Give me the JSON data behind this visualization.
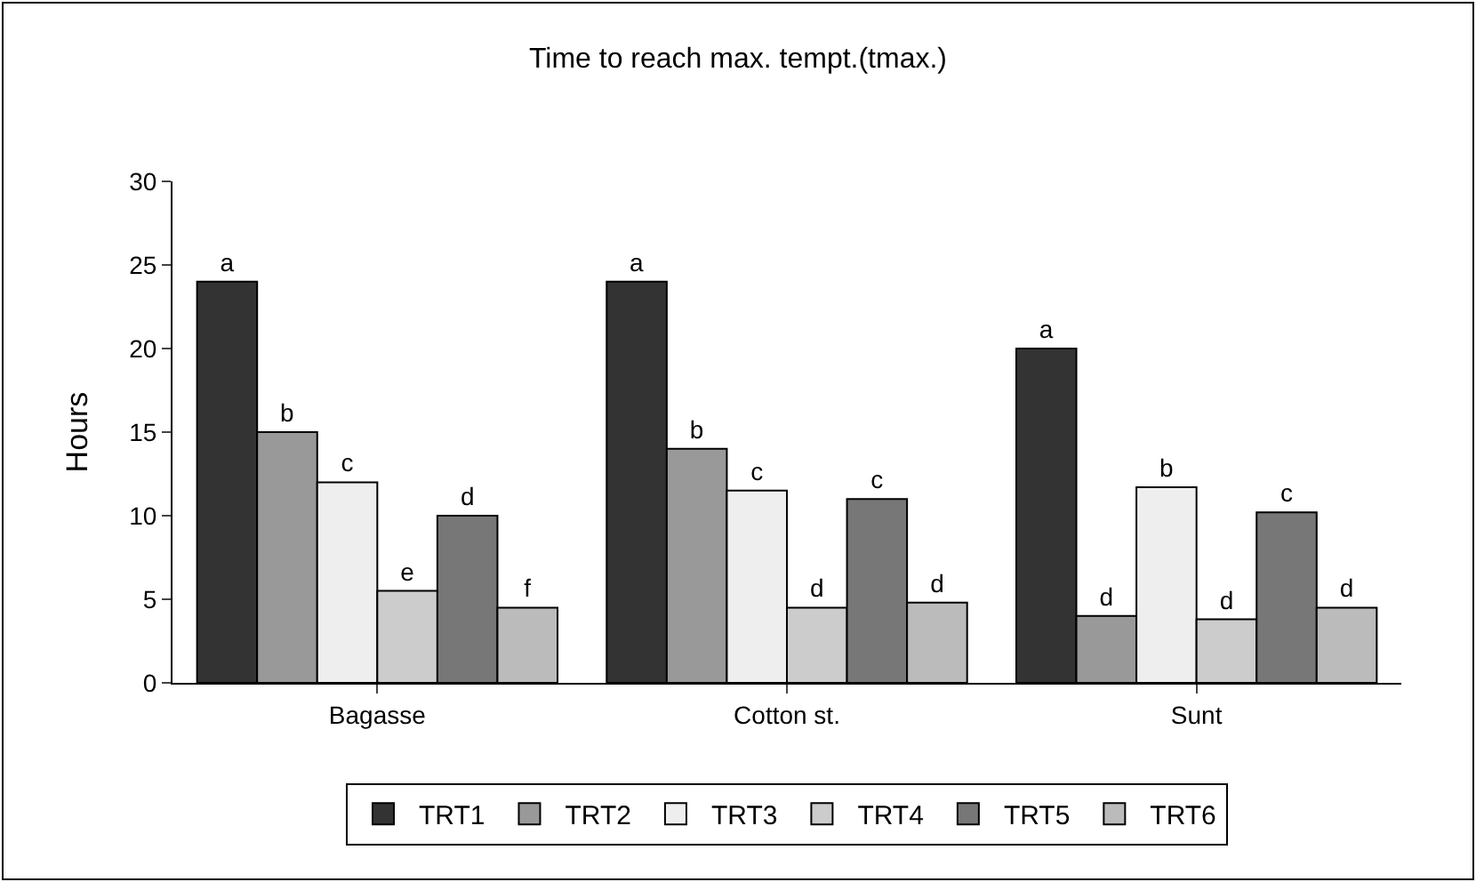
{
  "chart_data": {
    "type": "bar",
    "title": "Time to reach max. tempt.(tmax.)",
    "ylabel": "Hours",
    "categories": [
      "Bagasse",
      "Cotton st.",
      "Sunt"
    ],
    "series": [
      {
        "name": "TRT1",
        "color": "#333333",
        "values": [
          24,
          24,
          20
        ],
        "value_labels": [
          "a",
          "a",
          "a"
        ]
      },
      {
        "name": "TRT2",
        "color": "#999999",
        "values": [
          15,
          14,
          4
        ],
        "value_labels": [
          "b",
          "b",
          "d"
        ]
      },
      {
        "name": "TRT3",
        "color": "#eeeeee",
        "values": [
          12,
          11.5,
          11.7
        ],
        "value_labels": [
          "c",
          "c",
          "b"
        ]
      },
      {
        "name": "TRT4",
        "color": "#cccccc",
        "values": [
          5.5,
          4.5,
          3.8
        ],
        "value_labels": [
          "e",
          "d",
          "d"
        ]
      },
      {
        "name": "TRT5",
        "color": "#777777",
        "values": [
          10,
          11,
          10.2
        ],
        "value_labels": [
          "d",
          "c",
          "c"
        ]
      },
      {
        "name": "TRT6",
        "color": "#bbbbbb",
        "values": [
          4.5,
          4.8,
          4.5
        ],
        "value_labels": [
          "f",
          "d",
          "d"
        ]
      }
    ],
    "ylim": [
      0,
      30
    ],
    "yticks": [
      0,
      5,
      10,
      15,
      20,
      25,
      30
    ],
    "grid": false,
    "legend": "bottom"
  }
}
